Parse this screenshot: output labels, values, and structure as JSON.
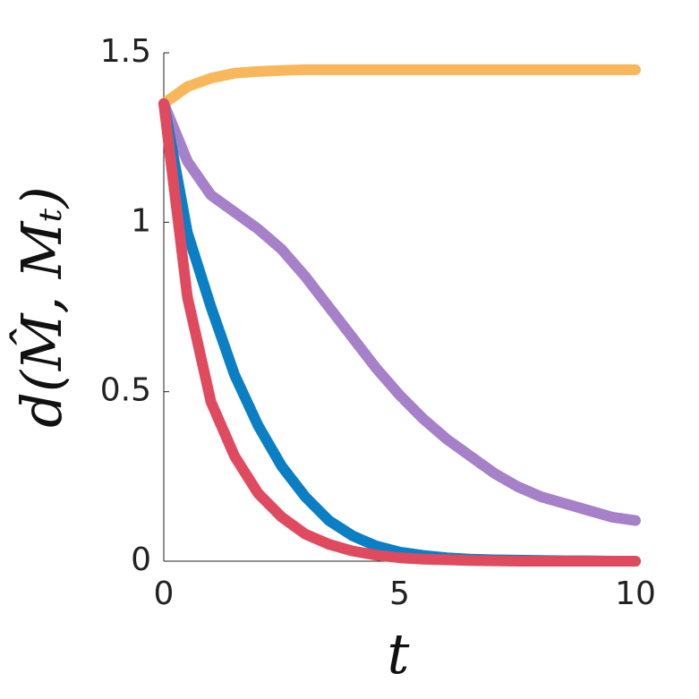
{
  "chart_data": {
    "type": "line",
    "x_label": "t",
    "y_label": "d(M̂, Mₜ)",
    "x": [
      0,
      0.5,
      1,
      1.5,
      2,
      2.5,
      3,
      3.5,
      4,
      4.5,
      5,
      5.5,
      6,
      6.5,
      7,
      7.5,
      8,
      8.5,
      9,
      9.5,
      10
    ],
    "series": [
      {
        "color": "#f7b75a",
        "values": [
          1.35,
          1.4,
          1.425,
          1.44,
          1.445,
          1.448,
          1.45,
          1.45,
          1.45,
          1.45,
          1.45,
          1.45,
          1.45,
          1.45,
          1.45,
          1.45,
          1.45,
          1.45,
          1.45,
          1.45,
          1.45
        ]
      },
      {
        "color": "#a680c8",
        "values": [
          1.35,
          1.18,
          1.08,
          1.03,
          0.98,
          0.92,
          0.84,
          0.75,
          0.66,
          0.57,
          0.49,
          0.42,
          0.36,
          0.31,
          0.26,
          0.22,
          0.19,
          0.17,
          0.15,
          0.13,
          0.12
        ]
      },
      {
        "color": "#0b7fc4",
        "values": [
          1.35,
          0.97,
          0.75,
          0.55,
          0.4,
          0.28,
          0.19,
          0.12,
          0.075,
          0.045,
          0.027,
          0.017,
          0.01,
          0.006,
          0.004,
          0.003,
          0.002,
          0.001,
          0.001,
          0,
          0
        ]
      },
      {
        "color": "#e04a5f",
        "values": [
          1.35,
          0.78,
          0.47,
          0.31,
          0.2,
          0.13,
          0.08,
          0.05,
          0.03,
          0.018,
          0.01,
          0.006,
          0.004,
          0.002,
          0.001,
          0,
          0,
          0,
          0,
          0,
          0
        ]
      }
    ],
    "xlim": [
      0,
      10
    ],
    "xticks": [
      0,
      5,
      10
    ],
    "ylim": [
      0,
      1.5
    ],
    "yticks": [
      0,
      0.5,
      1,
      1.5
    ],
    "grid": false
  }
}
